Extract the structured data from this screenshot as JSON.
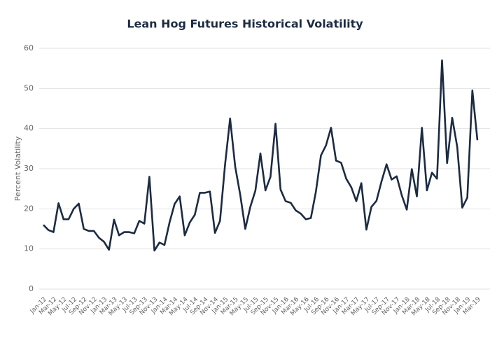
{
  "chart_data": {
    "type": "line",
    "title": "Lean Hog Futures Historical Volatility",
    "y_label": "Percent Volatility",
    "categories": [
      "Jan-12",
      null,
      "Mar-12",
      null,
      "May-12",
      null,
      "Jul-12",
      null,
      "Sep-12",
      null,
      "Nov-12",
      null,
      "Jan-13",
      null,
      "Mar-13",
      null,
      "May-13",
      null,
      "Jul-13",
      null,
      "Sep-13",
      null,
      "Nov-13",
      null,
      "Jan-14",
      null,
      "Mar-14",
      null,
      "May-14",
      null,
      "Jul-14",
      null,
      "Sep-14",
      null,
      "Nov-14",
      null,
      "Jan-15",
      null,
      "Mar-15",
      null,
      "May-15",
      null,
      "Jul-15",
      null,
      "Sep-15",
      null,
      "Nov-15",
      null,
      "Jan-16",
      null,
      "Mar-16",
      null,
      "May-16",
      null,
      "Jul-16",
      null,
      "Sep-16",
      null,
      "Nov-16",
      null,
      "Jan-17",
      null,
      "Mar-17",
      null,
      "May-17",
      null,
      "Jul-17",
      null,
      "Sep-17",
      null,
      "Nov-17",
      null,
      "Jan-18",
      null,
      "Mar-18",
      null,
      "May-18",
      null,
      "Jul-18",
      null,
      "Sep-18",
      null,
      "Nov-18",
      null,
      "Jan-19",
      null,
      "Mar-19"
    ],
    "series": [
      {
        "name": "Volatility",
        "color": "#1c2b42",
        "values": [
          16,
          14.7,
          14.2,
          21.4,
          17.4,
          17.4,
          20,
          21.3,
          15,
          14.5,
          14.5,
          12.8,
          11.8,
          9.8,
          17.3,
          13.4,
          14.2,
          14.2,
          13.9,
          17,
          16.3,
          28,
          9.6,
          11.6,
          11,
          16.6,
          21.2,
          23.1,
          13.4,
          16.6,
          18.5,
          24,
          24,
          24.3,
          14,
          17,
          31,
          42.5,
          30.5,
          23.5,
          15,
          20.5,
          24.5,
          33.8,
          24.6,
          28,
          41.2,
          24.8,
          21.9,
          21.5,
          19.6,
          18.8,
          17.4,
          17.7,
          24.3,
          33.3,
          35.8,
          40.2,
          32,
          31.5,
          27.5,
          25.4,
          21.9,
          26.4,
          14.8,
          20.5,
          22,
          26.8,
          31.1,
          27.3,
          28.1,
          23.4,
          19.8,
          29.9,
          23.1,
          40.2,
          24.6,
          29,
          27.5,
          57,
          31.4,
          42.7,
          35.4,
          20.3,
          22.8,
          49.5,
          37.1
        ]
      }
    ],
    "ylim": [
      0,
      60
    ],
    "yticks": [
      0,
      10,
      20,
      30,
      40,
      50,
      60
    ],
    "grid": true
  }
}
